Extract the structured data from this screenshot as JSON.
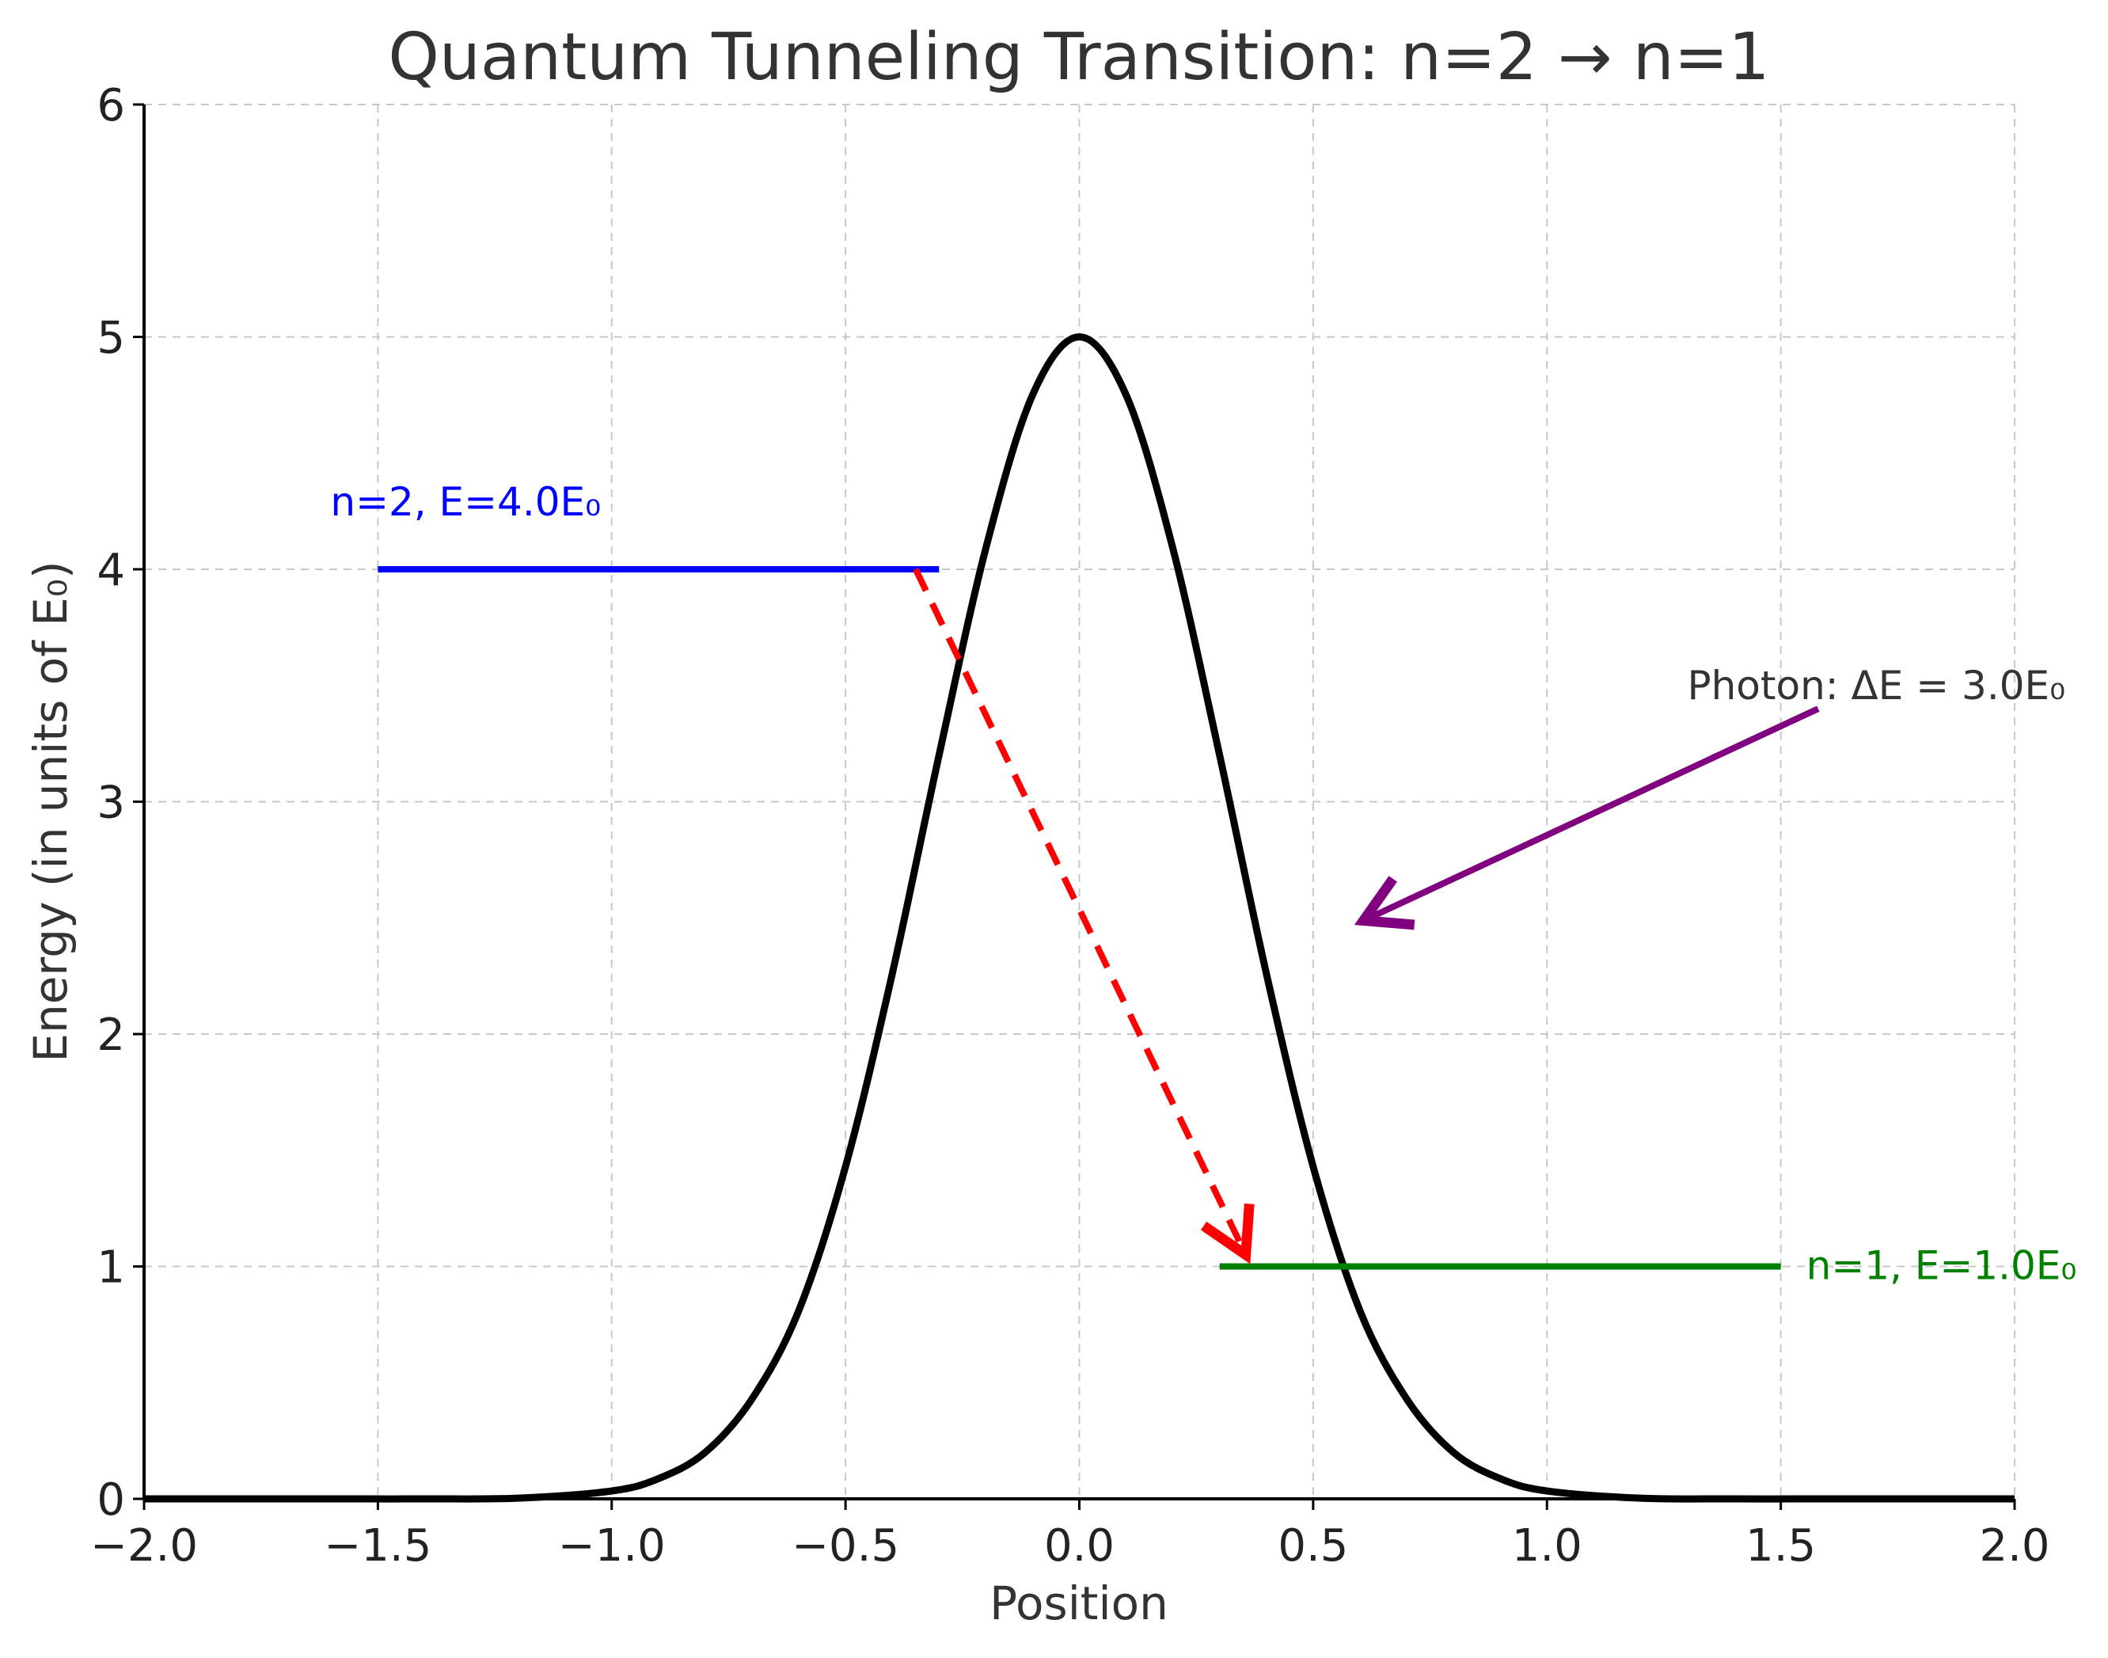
{
  "chart_data": {
    "type": "line",
    "title": "Quantum Tunneling Transition: n=2 → n=1",
    "xlabel": "Position",
    "ylabel": "Energy (in units of E₀)",
    "xlim": [
      -2.0,
      2.0
    ],
    "ylim": [
      0,
      6
    ],
    "grid": true,
    "x_ticks": [
      -2.0,
      -1.5,
      -1.0,
      -0.5,
      0.0,
      0.5,
      1.0,
      1.5,
      2.0
    ],
    "x_tick_labels": [
      "−2.0",
      "−1.5",
      "−1.0",
      "−0.5",
      "0.0",
      "0.5",
      "1.0",
      "1.5",
      "2.0"
    ],
    "y_ticks": [
      0,
      1,
      2,
      3,
      4,
      5,
      6
    ],
    "y_tick_labels": [
      "0",
      "1",
      "2",
      "3",
      "4",
      "5",
      "6"
    ],
    "barrier": {
      "color": "#000000",
      "x": [
        -2.0,
        -1.8,
        -1.6,
        -1.4,
        -1.2,
        -1.0,
        -0.9,
        -0.8,
        -0.7,
        -0.6,
        -0.5,
        -0.4,
        -0.3,
        -0.2,
        -0.1,
        0.0,
        0.1,
        0.2,
        0.3,
        0.4,
        0.5,
        0.6,
        0.7,
        0.8,
        0.9,
        1.0,
        1.2,
        1.4,
        1.6,
        1.8,
        2.0
      ],
      "y": [
        0.0,
        0.0,
        0.0,
        0.0,
        0.003,
        0.034,
        0.087,
        0.2,
        0.43,
        0.81,
        1.43,
        2.26,
        3.2,
        4.09,
        4.75,
        5.0,
        4.75,
        4.09,
        3.2,
        2.26,
        1.43,
        0.81,
        0.43,
        0.2,
        0.087,
        0.034,
        0.003,
        0.0,
        0.0,
        0.0,
        0.0
      ]
    },
    "levels": [
      {
        "label": "n=2, E=4.0E₀",
        "energy": 4.0,
        "x_start": -1.5,
        "x_end": -0.3,
        "color": "#0000ff"
      },
      {
        "label": "n=1, E=1.0E₀",
        "energy": 1.0,
        "x_start": 0.3,
        "x_end": 1.5,
        "color": "#008000"
      }
    ],
    "transition_arrow": {
      "from": [
        -0.35,
        4.0
      ],
      "to": [
        0.35,
        1.0
      ],
      "color": "#ff0000",
      "style": "dashed"
    },
    "photon_annotation": {
      "text": "Photon: ΔE = 3.0E₀",
      "text_at": [
        1.3,
        3.5
      ],
      "arrow_from": [
        1.58,
        3.4
      ],
      "arrow_to": [
        0.62,
        2.5
      ],
      "color": "#800080",
      "text_color": "#333333"
    }
  }
}
